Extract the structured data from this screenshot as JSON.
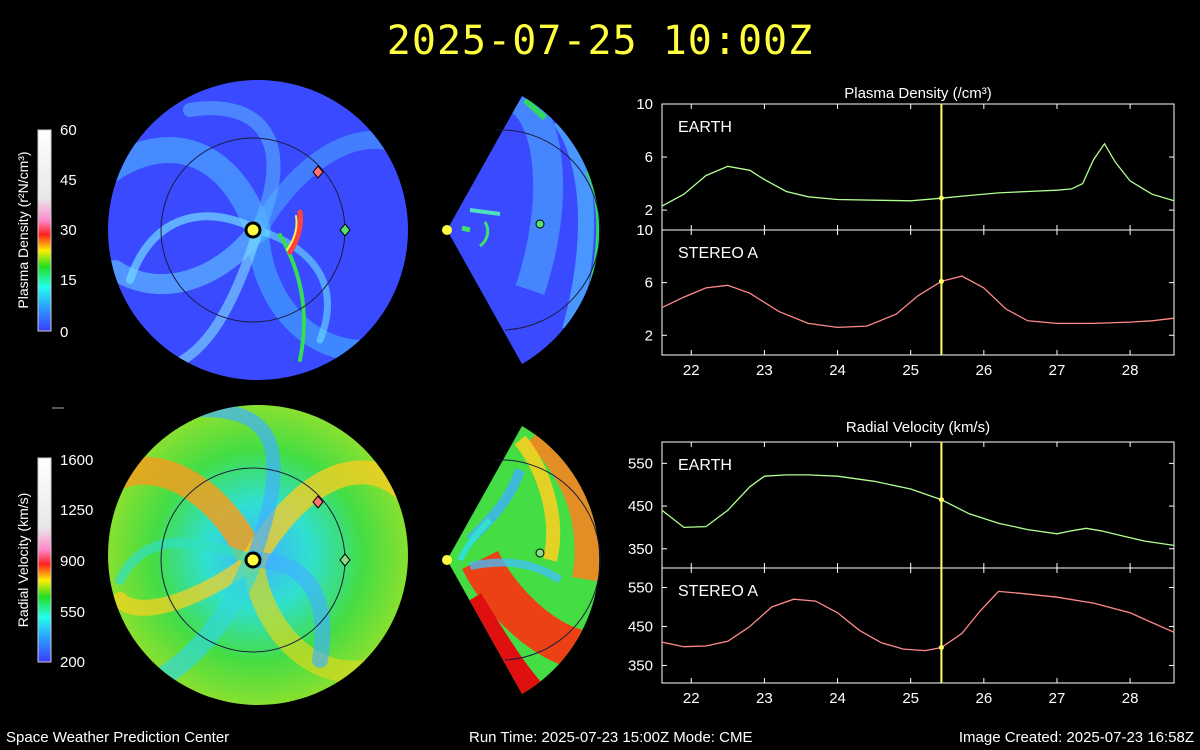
{
  "header": {
    "title": "2025-07-25 10:00Z"
  },
  "colors": {
    "background": "#000000",
    "title": "#ffff40",
    "earth_line": "#b0ff90",
    "stereo_line": "#ff8a8a",
    "time_marker": "#ffff66",
    "earth_marker": "#55e070",
    "stereo_marker": "#ff7070"
  },
  "colorbars": {
    "density": {
      "label": "Plasma Density (r²N/cm³)",
      "ticks": [
        "60",
        "45",
        "30",
        "15",
        "0"
      ]
    },
    "velocity": {
      "label": "Radial Velocity (km/s)",
      "ticks": [
        "1600",
        "1250",
        "900",
        "550",
        "200"
      ]
    }
  },
  "footer": {
    "left": "Space Weather Prediction Center",
    "center": "Run Time: 2025-07-23 15:00Z  Mode: CME",
    "right": "Image Created: 2025-07-23 16:58Z"
  },
  "chart_data": [
    {
      "type": "line",
      "title": "Plasma Density (/cm³)",
      "panel": "EARTH",
      "xlim": [
        21.6,
        28.6
      ],
      "x_ticks": [
        22,
        23,
        24,
        25,
        26,
        27,
        28
      ],
      "ylim": [
        0.5,
        10
      ],
      "y_ticks": [
        2,
        6,
        10
      ],
      "current_time": 25.42,
      "x": [
        21.6,
        21.9,
        22.2,
        22.5,
        22.8,
        23.0,
        23.3,
        23.6,
        24.0,
        24.5,
        25.0,
        25.42,
        25.8,
        26.2,
        26.6,
        27.0,
        27.2,
        27.35,
        27.5,
        27.65,
        27.8,
        28.0,
        28.3,
        28.6
      ],
      "y": [
        2.3,
        3.2,
        4.6,
        5.3,
        5.0,
        4.3,
        3.4,
        3.0,
        2.8,
        2.75,
        2.7,
        2.9,
        3.1,
        3.3,
        3.4,
        3.5,
        3.6,
        4.0,
        5.8,
        7.0,
        5.6,
        4.2,
        3.2,
        2.7
      ]
    },
    {
      "type": "line",
      "panel": "STEREO A",
      "xlim": [
        21.6,
        28.6
      ],
      "x_ticks": [
        22,
        23,
        24,
        25,
        26,
        27,
        28
      ],
      "ylim": [
        0.5,
        10
      ],
      "y_ticks": [
        2,
        6,
        10
      ],
      "current_time": 25.42,
      "x": [
        21.6,
        21.9,
        22.2,
        22.5,
        22.8,
        23.2,
        23.6,
        24.0,
        24.4,
        24.8,
        25.1,
        25.42,
        25.7,
        26.0,
        26.3,
        26.6,
        27.0,
        27.5,
        28.0,
        28.3,
        28.6
      ],
      "y": [
        4.1,
        4.9,
        5.6,
        5.8,
        5.2,
        3.8,
        2.9,
        2.6,
        2.7,
        3.6,
        5.0,
        6.1,
        6.5,
        5.6,
        4.0,
        3.1,
        2.9,
        2.9,
        3.0,
        3.1,
        3.3
      ]
    },
    {
      "type": "line",
      "title": "Radial Velocity (km/s)",
      "panel": "EARTH",
      "xlim": [
        21.6,
        28.6
      ],
      "x_ticks": [
        22,
        23,
        24,
        25,
        26,
        27,
        28
      ],
      "ylim": [
        305,
        600
      ],
      "y_ticks": [
        350,
        450,
        550
      ],
      "current_time": 25.42,
      "x": [
        21.6,
        21.9,
        22.2,
        22.5,
        22.8,
        23.0,
        23.3,
        23.6,
        24.0,
        24.5,
        25.0,
        25.42,
        25.8,
        26.2,
        26.6,
        27.0,
        27.2,
        27.4,
        27.6,
        27.9,
        28.2,
        28.6
      ],
      "y": [
        440,
        400,
        402,
        440,
        495,
        520,
        523,
        523,
        520,
        508,
        490,
        465,
        432,
        410,
        395,
        385,
        392,
        398,
        392,
        380,
        368,
        358
      ]
    },
    {
      "type": "line",
      "panel": "STEREO A",
      "xlim": [
        21.6,
        28.6
      ],
      "x_ticks": [
        22,
        23,
        24,
        25,
        26,
        27,
        28
      ],
      "ylim": [
        305,
        600
      ],
      "y_ticks": [
        350,
        450,
        550
      ],
      "current_time": 25.42,
      "x": [
        21.6,
        21.9,
        22.2,
        22.5,
        22.8,
        23.1,
        23.4,
        23.7,
        24.0,
        24.3,
        24.6,
        24.9,
        25.2,
        25.42,
        25.7,
        25.95,
        26.2,
        26.5,
        27.0,
        27.5,
        28.0,
        28.3,
        28.6
      ],
      "y": [
        410,
        398,
        400,
        412,
        450,
        500,
        520,
        515,
        485,
        440,
        408,
        392,
        388,
        396,
        432,
        490,
        540,
        535,
        525,
        510,
        485,
        460,
        435
      ]
    }
  ]
}
